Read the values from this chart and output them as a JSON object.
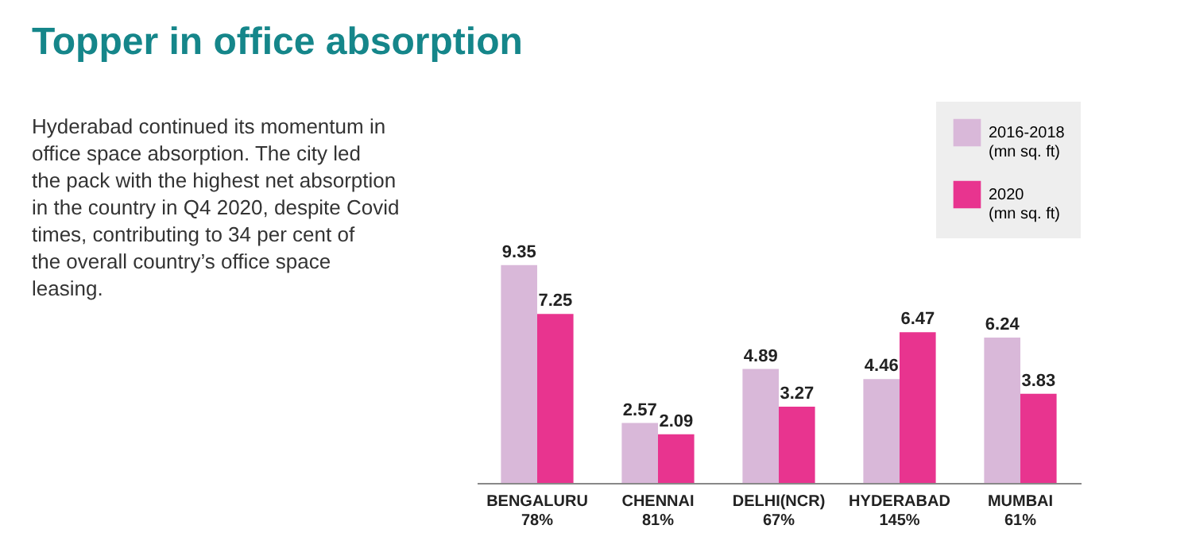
{
  "chart_data": {
    "type": "bar",
    "title": "Topper in office absorption",
    "annotations": [
      "Hyderabad continued its momentum in office space absorption. The city led the pack with the highest net absorption in the country in Q4 2020, despite Covid times, contributing to 34 per cent of the overall country’s office space leasing."
    ],
    "categories": [
      "BENGALURU\n78%",
      "CHENNAI\n81%",
      "DELHI(NCR)\n67%",
      "HYDERABAD\n145%",
      "MUMBAI\n61%"
    ],
    "series": [
      {
        "name": "2016-2018\n(mn sq. ft)",
        "color": "#d9b8d9",
        "values": [
          9.35,
          2.57,
          4.89,
          4.46,
          6.24
        ]
      },
      {
        "name": "2020\n(mn sq. ft)",
        "color": "#e8348f",
        "values": [
          7.25,
          2.09,
          3.27,
          6.47,
          3.83
        ]
      }
    ],
    "data_labels": true,
    "legend": "top right",
    "grid": false
  }
}
